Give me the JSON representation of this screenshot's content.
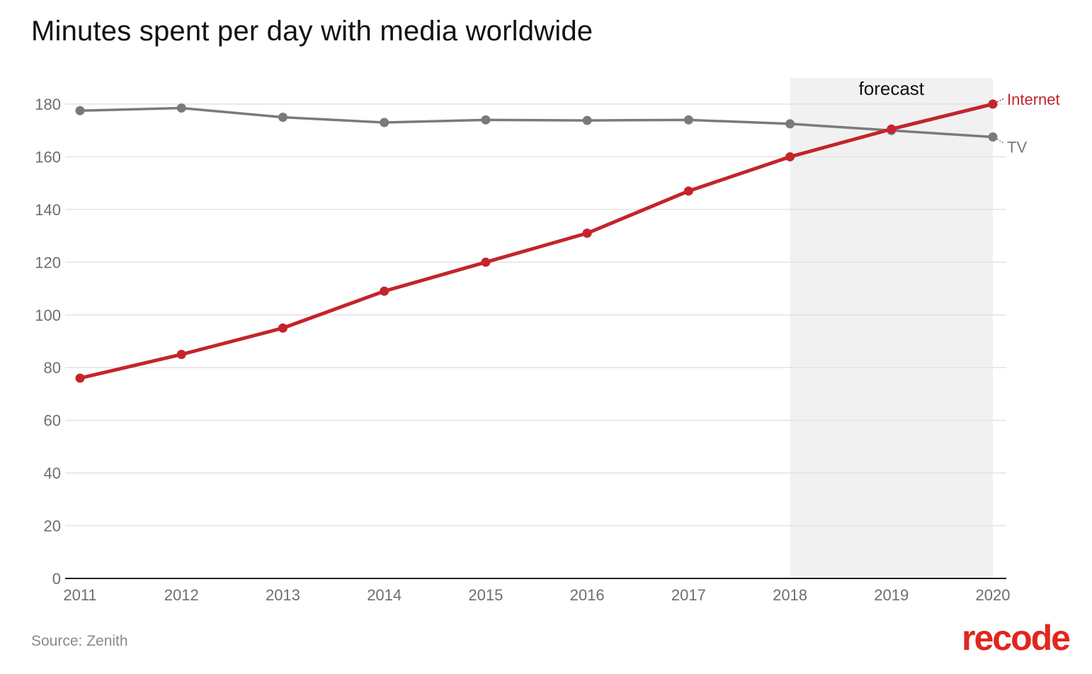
{
  "chart_data": {
    "type": "line",
    "title": "Minutes spent per day with media worldwide",
    "x": [
      "2011",
      "2012",
      "2013",
      "2014",
      "2015",
      "2016",
      "2017",
      "2018",
      "2019",
      "2020"
    ],
    "series": [
      {
        "name": "TV",
        "color": "#7a7a7a",
        "values": [
          177.5,
          178.5,
          175,
          173,
          174,
          173.8,
          174,
          172.5,
          170,
          167.5
        ]
      },
      {
        "name": "Internet",
        "color": "#c4242b",
        "values": [
          76,
          85,
          95,
          109,
          120,
          131,
          147,
          160,
          170.5,
          180
        ]
      }
    ],
    "ylim": [
      0,
      180
    ],
    "yticks": [
      "0",
      "20",
      "40",
      "60",
      "80",
      "100",
      "120",
      "140",
      "160",
      "180"
    ],
    "grid": true,
    "annotations": [
      {
        "text": "forecast",
        "region_start": "2018",
        "region_end": "2020"
      }
    ]
  },
  "footer": {
    "source": "Source: Zenith",
    "logo": "recode"
  },
  "colors": {
    "grid": "#e3e3e3",
    "axis": "#222222",
    "tick_label": "#6e6e6e",
    "forecast_band": "#f1f1f1"
  }
}
